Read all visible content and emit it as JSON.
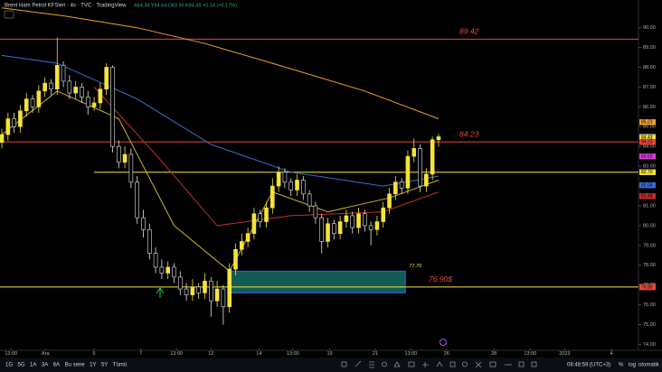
{
  "header": {
    "title": "Brent Ham Petrol KFSleri · 4s · TVC · TradingView",
    "ohlc": "A84.34 Y84.64 D83.99 K84.49 +0.14 (+0.17%)"
  },
  "chart_data": {
    "type": "candlestick",
    "up_color": "#f5e33b",
    "down_color": "#e6e6e6",
    "grid": false,
    "xlim": [
      -0.3,
      103.5
    ],
    "ylim": [
      73.7,
      91.4
    ],
    "yticks": [
      {
        "value": 74,
        "label": "74.00"
      },
      {
        "value": 75,
        "label": "75.00"
      },
      {
        "value": 76,
        "label": "76.00"
      },
      {
        "value": 77,
        "label": "77.00"
      },
      {
        "value": 78,
        "label": "78.00"
      },
      {
        "value": 79,
        "label": "79.00"
      },
      {
        "value": 80,
        "label": "80.00"
      },
      {
        "value": 81,
        "label": "81.00"
      },
      {
        "value": 82,
        "label": "82.00"
      },
      {
        "value": 83,
        "label": "83.00"
      },
      {
        "value": 84,
        "label": "84.00"
      },
      {
        "value": 85,
        "label": "85.00"
      },
      {
        "value": 86,
        "label": "86.00"
      },
      {
        "value": 87,
        "label": "87.00"
      },
      {
        "value": 88,
        "label": "88.00"
      },
      {
        "value": 89,
        "label": "89.00"
      },
      {
        "value": 90,
        "label": "90.00"
      }
    ],
    "xticks": [
      {
        "value": 1.5,
        "label": "13:00"
      },
      {
        "value": 7.1,
        "label": "Ara"
      },
      {
        "value": 15,
        "label": "5"
      },
      {
        "value": 22.6,
        "label": "7"
      },
      {
        "value": 28.4,
        "label": "13:00"
      },
      {
        "value": 34,
        "label": "12"
      },
      {
        "value": 41.8,
        "label": "14"
      },
      {
        "value": 47.3,
        "label": "13:00"
      },
      {
        "value": 53.3,
        "label": "19"
      },
      {
        "value": 60.7,
        "label": "21"
      },
      {
        "value": 66.5,
        "label": "13:00"
      },
      {
        "value": 72.3,
        "label": "26"
      },
      {
        "value": 80,
        "label": "28"
      },
      {
        "value": 85.9,
        "label": "13:00"
      },
      {
        "value": 91.5,
        "label": "2023"
      },
      {
        "value": 99.1,
        "label": "4"
      }
    ],
    "open": [
      84.2,
      84.6,
      85.4,
      85.0,
      85.8,
      86.4,
      86.0,
      86.8,
      87.2,
      86.9,
      88.1,
      87.3,
      86.7,
      87.0,
      86.5,
      86.0,
      86.2,
      86.9,
      88.0,
      84.0,
      83.2,
      83.6,
      82.2,
      80.4,
      79.8,
      78.6,
      77.9,
      77.6,
      77.9,
      77.4,
      76.8,
      76.5,
      76.9,
      76.6,
      77.2,
      76.2,
      76.8,
      75.9,
      77.8,
      78.8,
      79.2,
      79.6,
      80.6,
      80.2,
      80.9,
      82.0,
      82.7,
      82.2,
      81.8,
      82.3,
      81.6,
      81.0,
      80.4,
      79.2,
      80.1,
      79.6,
      80.2,
      80.5,
      79.9,
      80.6,
      80.0,
      79.8,
      80.2,
      80.9,
      81.6,
      82.2,
      81.9,
      83.5,
      83.9,
      82.0,
      82.6,
      84.34
    ],
    "high": [
      84.9,
      85.7,
      85.7,
      86.1,
      86.7,
      86.6,
      87.1,
      87.5,
      87.4,
      89.5,
      88.3,
      87.6,
      87.3,
      87.2,
      86.8,
      86.5,
      87.2,
      88.2,
      88.1,
      84.3,
      84.0,
      83.9,
      82.5,
      80.8,
      80.1,
      78.9,
      78.3,
      78.2,
      78.1,
      77.7,
      77.1,
      77.3,
      77.1,
      77.6,
      77.4,
      77.2,
      77.0,
      78.1,
      79.1,
      79.6,
      79.9,
      80.9,
      80.8,
      81.2,
      82.4,
      83.0,
      82.9,
      82.4,
      82.6,
      82.5,
      81.8,
      81.2,
      80.6,
      80.4,
      80.3,
      80.5,
      80.8,
      80.7,
      80.9,
      80.8,
      80.2,
      80.5,
      81.2,
      81.9,
      82.5,
      82.4,
      83.8,
      84.4,
      84.1,
      82.9,
      84.5,
      84.64
    ],
    "low": [
      83.9,
      84.3,
      84.7,
      84.7,
      85.5,
      85.7,
      85.7,
      86.5,
      86.6,
      86.6,
      87.0,
      86.4,
      86.4,
      86.2,
      85.6,
      85.8,
      85.9,
      86.6,
      83.7,
      82.9,
      82.9,
      81.9,
      80.1,
      79.4,
      78.3,
      77.6,
      77.3,
      77.3,
      77.1,
      76.5,
      76.2,
      76.2,
      76.3,
      76.3,
      75.4,
      75.9,
      75.0,
      75.6,
      77.5,
      78.5,
      78.9,
      79.3,
      79.9,
      79.9,
      80.6,
      81.7,
      81.9,
      81.5,
      81.5,
      81.3,
      80.7,
      80.1,
      78.6,
      78.9,
      79.3,
      79.3,
      79.9,
      79.6,
      79.6,
      79.7,
      79.0,
      79.5,
      79.9,
      80.6,
      81.3,
      81.6,
      81.6,
      83.2,
      81.7,
      81.7,
      82.3,
      83.99
    ],
    "close": [
      84.6,
      85.4,
      85.0,
      85.8,
      86.4,
      86.0,
      86.8,
      87.2,
      86.9,
      88.1,
      87.3,
      86.7,
      87.0,
      86.5,
      86.0,
      86.2,
      86.9,
      88.0,
      84.0,
      83.2,
      83.6,
      82.2,
      80.4,
      79.8,
      78.6,
      77.9,
      77.6,
      77.9,
      77.4,
      76.8,
      76.5,
      76.9,
      76.6,
      77.2,
      76.2,
      76.8,
      75.9,
      77.8,
      78.8,
      79.2,
      79.6,
      80.6,
      80.2,
      80.9,
      82.0,
      82.7,
      82.2,
      81.8,
      82.3,
      81.6,
      81.0,
      80.4,
      79.2,
      80.1,
      79.6,
      80.2,
      80.5,
      79.9,
      80.6,
      80.0,
      79.8,
      80.2,
      80.9,
      81.6,
      82.2,
      81.9,
      83.5,
      83.9,
      82.0,
      82.6,
      84.34,
      84.49
    ],
    "moving_averages": [
      {
        "color": "#f0a030",
        "x": [
          0,
          10,
          22,
          33,
          44,
          59,
          71
        ],
        "values": [
          91.0,
          90.6,
          90.0,
          89.2,
          88.2,
          86.8,
          85.4
        ]
      },
      {
        "color": "#3a6fd6",
        "x": [
          0,
          9,
          22,
          34,
          47,
          62,
          71
        ],
        "values": [
          88.6,
          88.2,
          86.4,
          84.1,
          82.7,
          82.0,
          82.5
        ]
      },
      {
        "color": "#c0302a",
        "x": [
          15,
          25,
          35,
          47,
          62,
          71
        ],
        "values": [
          87.0,
          83.6,
          80.0,
          80.5,
          80.7,
          81.7
        ]
      },
      {
        "color": "#c8b030",
        "x": [
          0,
          9,
          19,
          28,
          37,
          44,
          53,
          63,
          71
        ],
        "values": [
          84.6,
          86.8,
          85.4,
          80.0,
          77.7,
          81.7,
          80.7,
          81.4,
          82.3
        ]
      }
    ],
    "levels": [
      {
        "value": 89.42,
        "label": "89.42",
        "color": "#e8453c"
      },
      {
        "value": 84.23,
        "label": "84.23",
        "color": "#e8453c"
      },
      {
        "value": 82.7,
        "color": "#f5e33b",
        "x_start": 15
      },
      {
        "value": 76.9,
        "label": "76.90$",
        "color": "#f5e33b"
      }
    ],
    "box": {
      "x_start": 36.8,
      "x_end": 65.6,
      "top": 77.7,
      "bottom": 76.6,
      "label": "77.70"
    },
    "price_labels": [
      {
        "value": 85.23,
        "label": "85.23",
        "color": "#f0a030"
      },
      {
        "value": 84.49,
        "label": "84.49",
        "color": "#9e9e9e"
      },
      {
        "value": 84.43,
        "label": "84.43",
        "color": "#f5e33b"
      },
      {
        "value": 84.23,
        "label": "84.23",
        "color": "#e8453c"
      },
      {
        "value": 83.5,
        "label": "83.50",
        "color": "#d63fd6"
      },
      {
        "value": 82.7,
        "label": "82.70",
        "color": "#f5e33b"
      },
      {
        "value": 82.04,
        "label": "82.04",
        "color": "#3a6fd6"
      },
      {
        "value": 81.49,
        "label": "81.49",
        "color": "#c0302a"
      },
      {
        "value": 76.9,
        "label": "76.90",
        "color": "#f5e33b"
      },
      {
        "value": 76.89,
        "label": "76.89",
        "color": "#e8453c"
      }
    ]
  },
  "toolbar": {
    "ranges": [
      "1G",
      "5G",
      "1A",
      "3A",
      "6A",
      "Bu sene",
      "1Y",
      "5Y",
      "Tümü"
    ],
    "clock": "08:48:59 (UTC+3)",
    "options": [
      "%",
      "log",
      "otomatik"
    ]
  }
}
